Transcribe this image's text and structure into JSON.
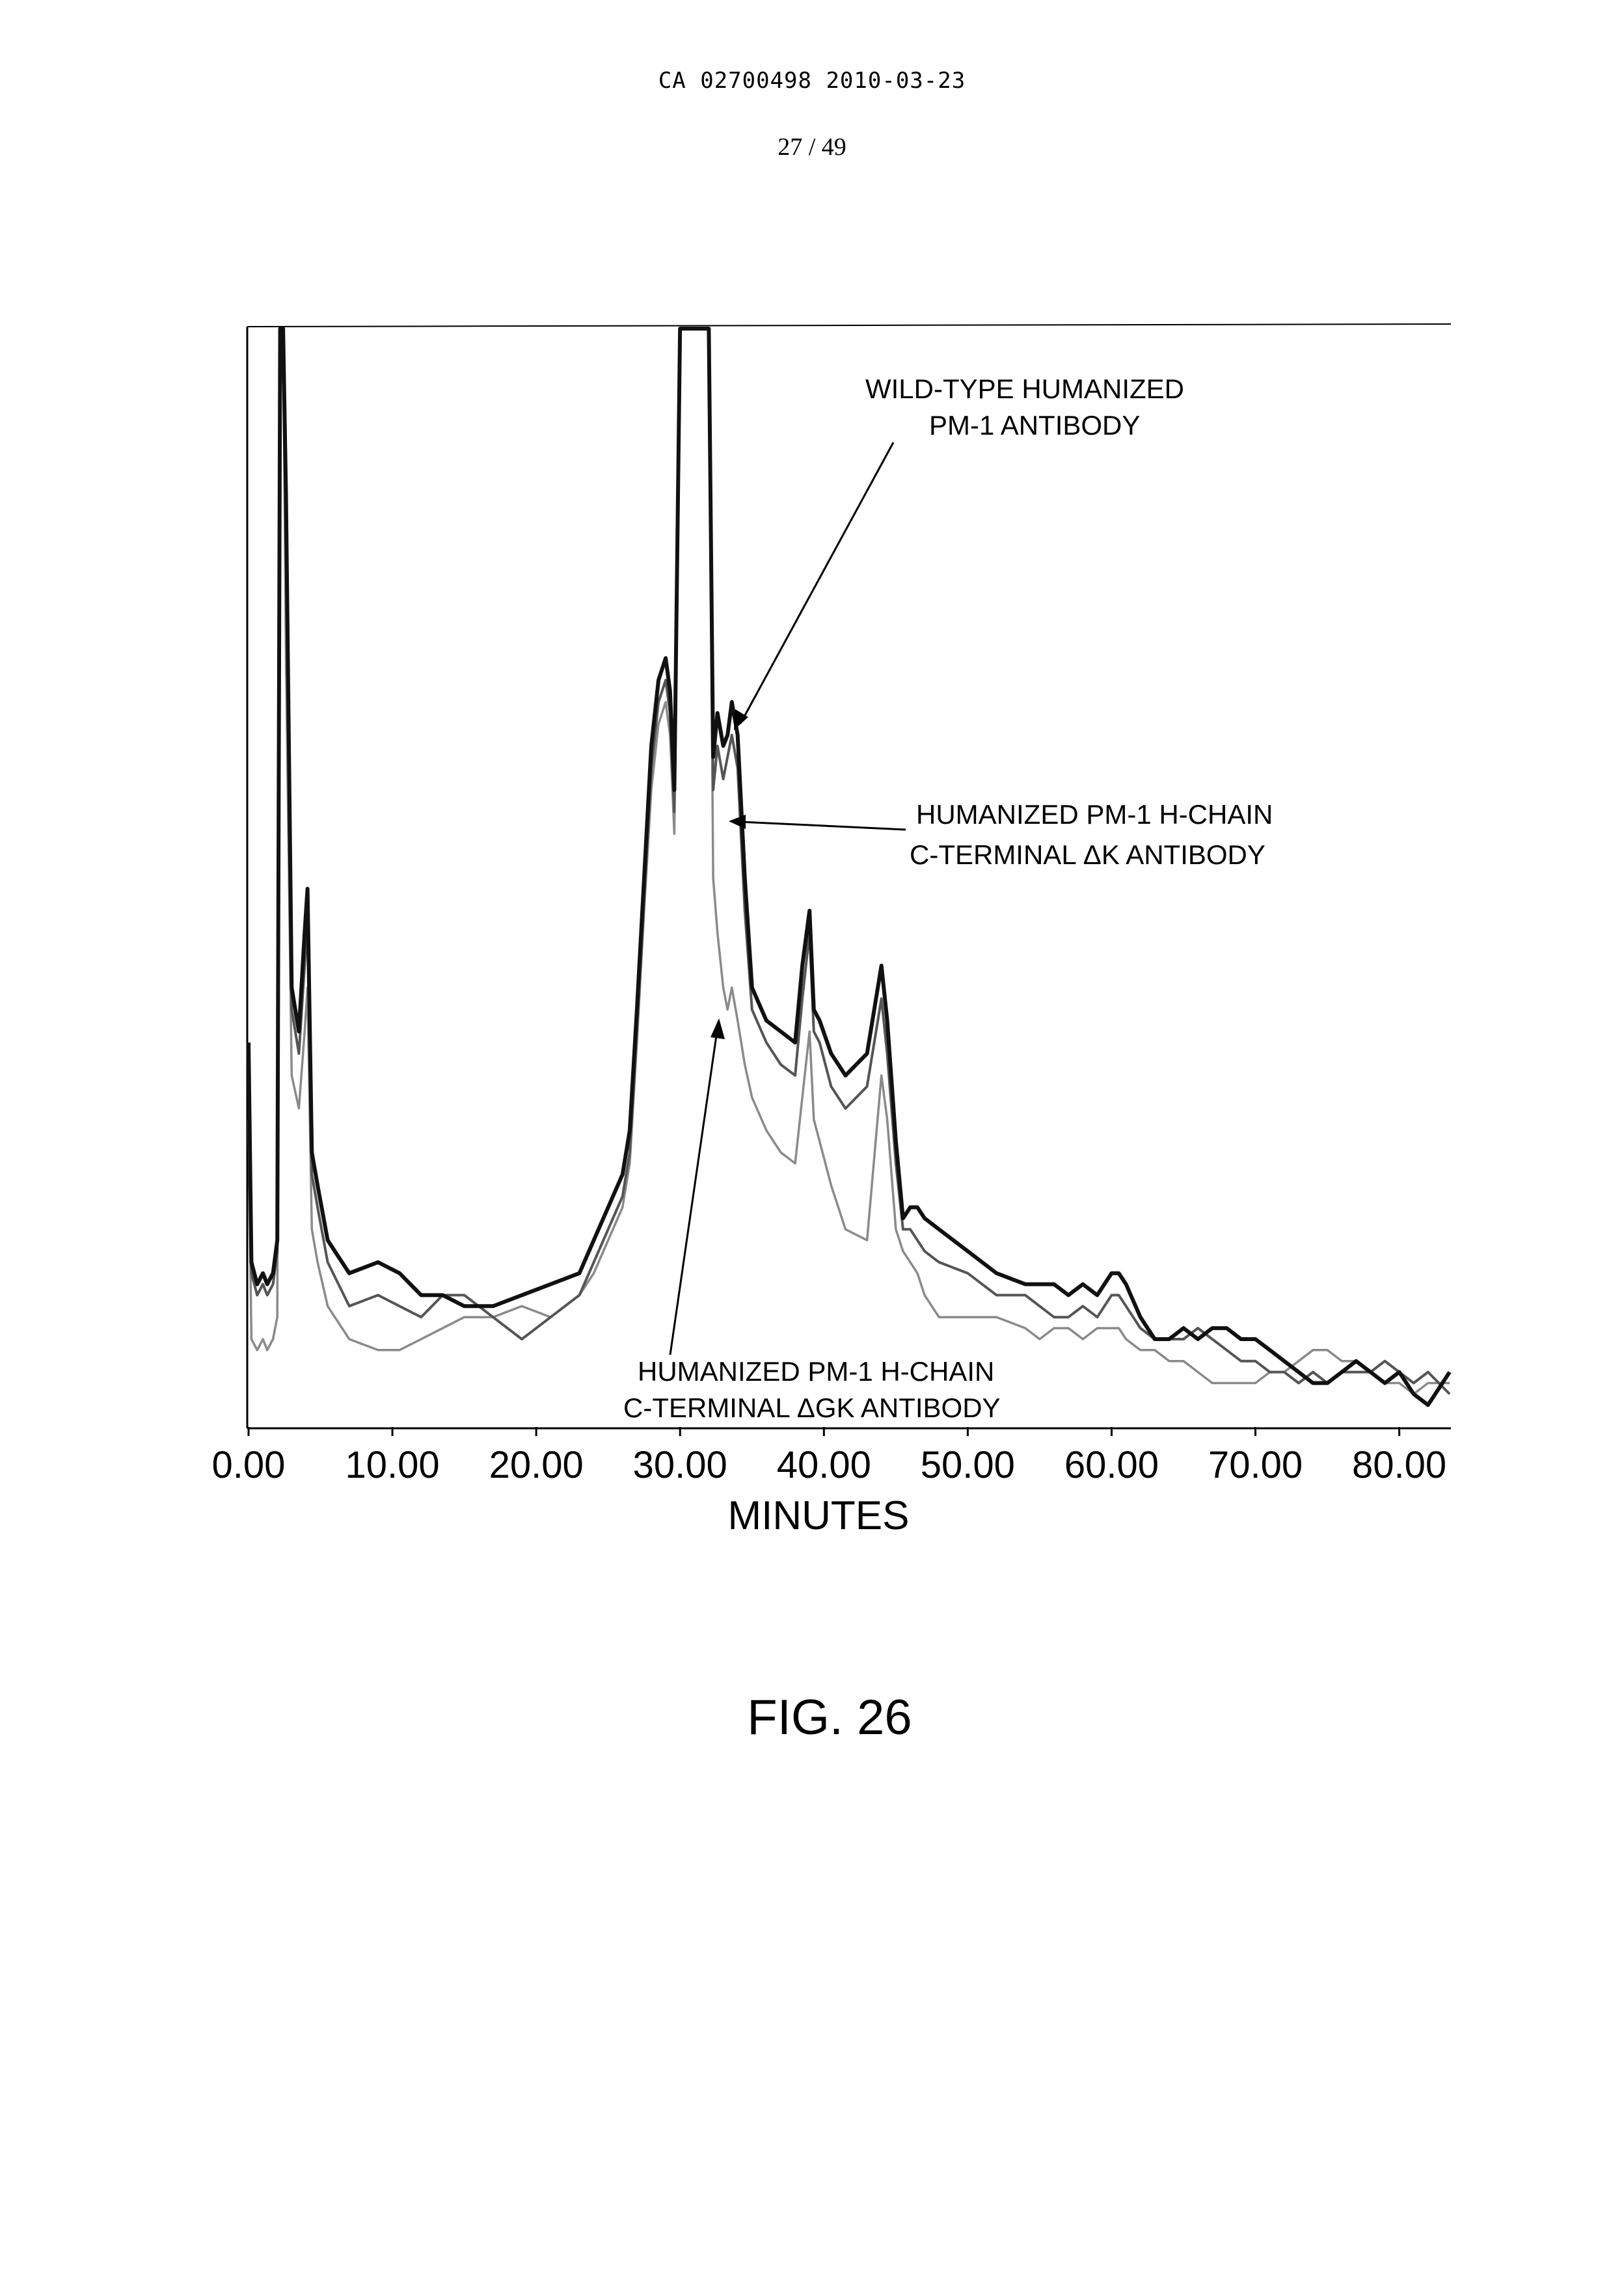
{
  "header": {
    "doc_id": "CA 02700498 2010-03-23",
    "page": "27 / 49"
  },
  "figure": {
    "caption": "FIG. 26"
  },
  "chart_data": {
    "type": "line",
    "xlabel": "MINUTES",
    "ylabel": "",
    "xlim": [
      0,
      83.5
    ],
    "ylim": [
      0,
      100
    ],
    "x_ticks": [
      "0.00",
      "10.00",
      "20.00",
      "30.00",
      "40.00",
      "50.00",
      "60.00",
      "70.00",
      "80.00"
    ],
    "x_tick_values": [
      0,
      10,
      20,
      30,
      40,
      50,
      60,
      70,
      80
    ],
    "grid": false,
    "annotations": [
      {
        "lines": [
          "WILD-TYPE HUMANIZED",
          "PM-1 ANTIBODY"
        ],
        "series": "wild"
      },
      {
        "lines": [
          "HUMANIZED PM-1 H-CHAIN",
          "C-TERMINAL  ΔK ANTIBODY"
        ],
        "series": "dk"
      },
      {
        "lines": [
          "HUMANIZED PM-1 H-CHAIN",
          "C-TERMINAL  ΔGK ANTIBODY"
        ],
        "series": "dgk"
      }
    ],
    "series": [
      {
        "key": "wild",
        "color": "#111111",
        "x": [
          0,
          0.2,
          0.6,
          1.0,
          1.3,
          1.7,
          2.0,
          2.2,
          2.4,
          2.6,
          3.0,
          3.5,
          3.9,
          4.1,
          4.4,
          4.8,
          5.5,
          7,
          9,
          10.5,
          12,
          13.5,
          15,
          17,
          19,
          21,
          23,
          24,
          25,
          26,
          26.5,
          27,
          27.5,
          28,
          28.5,
          29,
          29.3,
          29.6,
          30,
          32,
          32.3,
          32.6,
          33,
          33.3,
          33.6,
          34.0,
          34.5,
          35,
          36,
          37,
          38,
          38.5,
          39,
          39.3,
          39.7,
          40.5,
          41.5,
          43,
          44,
          44.4,
          45,
          45.5,
          46,
          46.5,
          47,
          48,
          50,
          52,
          54,
          55,
          56,
          57,
          58,
          59,
          60,
          60.5,
          61,
          62,
          63,
          64,
          65,
          66,
          67,
          68,
          69,
          70,
          71,
          72,
          73,
          74,
          75,
          76,
          77,
          78,
          79,
          80,
          81,
          82,
          83.5
        ],
        "y": [
          35,
          15,
          13,
          14,
          13,
          14,
          17,
          100,
          100,
          85,
          40,
          36,
          45,
          49,
          25,
          22,
          17,
          14,
          15,
          14,
          12,
          12,
          11,
          11,
          12,
          13,
          14,
          17,
          20,
          23,
          27,
          38,
          50,
          62,
          68,
          70,
          67,
          58,
          100,
          100,
          61,
          65,
          62,
          63,
          66,
          63,
          50,
          40,
          37,
          36,
          35,
          42,
          47,
          38,
          37,
          34,
          32,
          34,
          42,
          37,
          26,
          19,
          20,
          20,
          19,
          18,
          16,
          14,
          13,
          13,
          13,
          12,
          13,
          12,
          14,
          14,
          13,
          10,
          8,
          8,
          9,
          8,
          9,
          9,
          8,
          8,
          7,
          6,
          5,
          4,
          4,
          5,
          6,
          5,
          4,
          5,
          3,
          2,
          5
        ]
      },
      {
        "key": "dk",
        "color": "#555555",
        "x": [
          0,
          0.2,
          0.6,
          1.0,
          1.3,
          1.7,
          2.0,
          2.2,
          2.4,
          2.6,
          3.0,
          3.5,
          3.9,
          4.1,
          4.4,
          4.8,
          5.5,
          7,
          9,
          10.5,
          12,
          13.5,
          15,
          17,
          19,
          21,
          23,
          24,
          25,
          26,
          26.5,
          27,
          27.5,
          28,
          28.5,
          29,
          29.3,
          29.6,
          30,
          32,
          32.3,
          32.6,
          33,
          33.3,
          33.6,
          34.0,
          34.5,
          35,
          36,
          37,
          38,
          38.5,
          39,
          39.3,
          39.7,
          40.5,
          41.5,
          43,
          44,
          44.4,
          45,
          45.5,
          46,
          46.5,
          47,
          48,
          50,
          52,
          54,
          55,
          56,
          57,
          58,
          59,
          60,
          60.5,
          61,
          62,
          63,
          64,
          65,
          66,
          67,
          68,
          69,
          70,
          71,
          72,
          73,
          74,
          75,
          76,
          77,
          78,
          79,
          80,
          81,
          82,
          83.5
        ],
        "y": [
          33,
          14,
          12,
          13,
          12,
          13,
          16,
          100,
          100,
          80,
          38,
          34,
          42,
          46,
          23,
          20,
          15,
          11,
          12,
          11,
          10,
          12,
          12,
          10,
          8,
          10,
          12,
          15,
          18,
          21,
          25,
          36,
          48,
          60,
          66,
          68,
          65,
          56,
          100,
          100,
          58,
          62,
          59,
          61,
          63,
          60,
          47,
          38,
          35,
          33,
          32,
          39,
          45,
          36,
          35,
          31,
          29,
          31,
          39,
          34,
          24,
          18,
          18,
          17,
          16,
          15,
          14,
          12,
          12,
          11,
          10,
          10,
          11,
          10,
          12,
          12,
          11,
          9,
          8,
          8,
          8,
          9,
          8,
          7,
          6,
          6,
          5,
          5,
          4,
          5,
          4,
          5,
          5,
          5,
          6,
          5,
          4,
          5,
          3
        ]
      },
      {
        "key": "dgk",
        "color": "#8a8a8a",
        "x": [
          0,
          0.2,
          0.6,
          1.0,
          1.3,
          1.7,
          2.0,
          2.2,
          2.4,
          2.6,
          3.0,
          3.5,
          3.9,
          4.1,
          4.4,
          4.8,
          5.5,
          7,
          9,
          10.5,
          12,
          13.5,
          15,
          17,
          19,
          21,
          23,
          24,
          25,
          26,
          26.5,
          27,
          27.5,
          28,
          28.5,
          29,
          29.3,
          29.6,
          30,
          32,
          32.3,
          32.6,
          33,
          33.3,
          33.6,
          34.0,
          34.5,
          35,
          36,
          37,
          38,
          38.5,
          39,
          39.3,
          39.7,
          40.5,
          41.5,
          43,
          44,
          44.4,
          45,
          45.5,
          46,
          46.5,
          47,
          48,
          50,
          52,
          54,
          55,
          56,
          57,
          58,
          59,
          60,
          60.5,
          61,
          62,
          63,
          64,
          65,
          66,
          67,
          68,
          69,
          70,
          71,
          72,
          73,
          74,
          75,
          76,
          77,
          78,
          79,
          80,
          81,
          82,
          83.5
        ],
        "y": [
          28,
          8,
          7,
          8,
          7,
          8,
          10,
          100,
          100,
          70,
          32,
          29,
          36,
          40,
          18,
          15,
          11,
          8,
          7,
          7,
          8,
          9,
          10,
          10,
          11,
          10,
          12,
          14,
          17,
          20,
          24,
          35,
          47,
          58,
          64,
          66,
          63,
          54,
          100,
          100,
          50,
          45,
          40,
          38,
          40,
          37,
          33,
          30,
          27,
          25,
          24,
          30,
          36,
          28,
          26,
          22,
          18,
          17,
          32,
          28,
          18,
          16,
          15,
          14,
          12,
          10,
          10,
          10,
          9,
          8,
          9,
          9,
          8,
          9,
          9,
          9,
          8,
          7,
          7,
          6,
          6,
          5,
          4,
          4,
          4,
          4,
          5,
          5,
          6,
          7,
          7,
          6,
          6,
          5,
          4,
          4,
          3,
          4,
          4
        ]
      }
    ]
  }
}
